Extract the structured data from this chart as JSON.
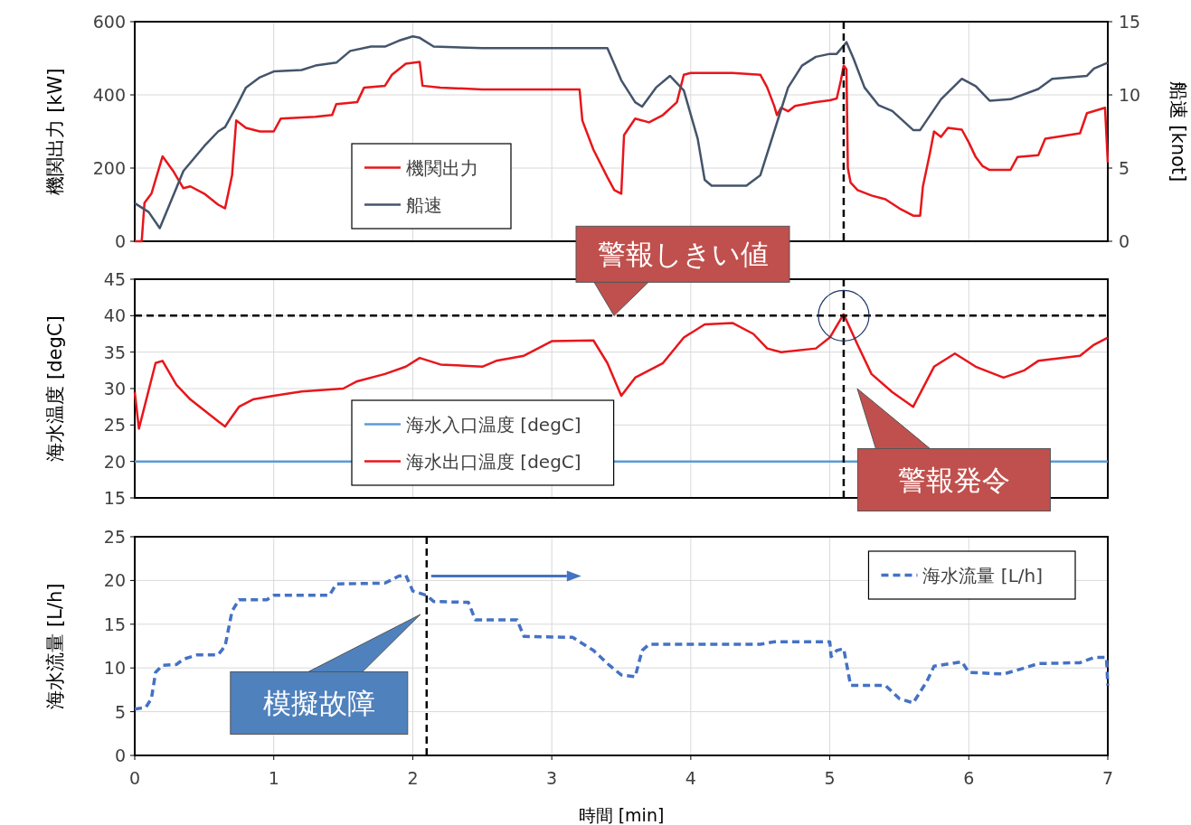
{
  "chart_data": [
    {
      "type": "line",
      "ylabel": "機関出力 [kW]",
      "y2label": "船速 [knot]",
      "xlim": [
        0,
        7
      ],
      "xticks": [
        0,
        1,
        2,
        3,
        4,
        5,
        6,
        7
      ],
      "ylim": [
        0,
        600
      ],
      "yticks": [
        0,
        200,
        400,
        600
      ],
      "y2lim": [
        0,
        15
      ],
      "y2ticks": [
        0,
        5,
        10,
        15
      ],
      "grid": true,
      "legend": "bottom left",
      "tick_labels": "y",
      "ref_lines": [
        {
          "axis": "x",
          "value": 5.1,
          "color": "#000000",
          "line_style": "dashed"
        }
      ],
      "series": [
        {
          "name": "機関出力",
          "color": "#e8161b",
          "x": [
            0,
            0.05,
            0.07,
            0.12,
            0.2,
            0.28,
            0.35,
            0.4,
            0.5,
            0.6,
            0.65,
            0.7,
            0.73,
            0.8,
            0.9,
            1.0,
            1.05,
            1.3,
            1.42,
            1.45,
            1.6,
            1.65,
            1.8,
            1.85,
            1.95,
            2.05,
            2.07,
            2.2,
            2.5,
            3.0,
            3.2,
            3.22,
            3.3,
            3.4,
            3.45,
            3.5,
            3.52,
            3.6,
            3.7,
            3.8,
            3.9,
            3.95,
            4.0,
            4.3,
            4.5,
            4.55,
            4.6,
            4.62,
            4.65,
            4.7,
            4.75,
            4.9,
            5.0,
            5.05,
            5.08,
            5.1,
            5.12,
            5.13,
            5.15,
            5.2,
            5.3,
            5.4,
            5.5,
            5.6,
            5.65,
            5.67,
            5.72,
            5.75,
            5.8,
            5.85,
            5.95,
            6.0,
            6.05,
            6.1,
            6.15,
            6.3,
            6.35,
            6.5,
            6.55,
            6.8,
            6.85,
            6.98,
            7.0
          ],
          "values": [
            0,
            0,
            105,
            130,
            232,
            190,
            145,
            150,
            130,
            100,
            90,
            180,
            330,
            310,
            300,
            300,
            335,
            340,
            345,
            375,
            380,
            420,
            425,
            455,
            485,
            490,
            425,
            420,
            415,
            415,
            415,
            330,
            250,
            175,
            140,
            130,
            290,
            335,
            325,
            345,
            380,
            455,
            460,
            460,
            455,
            420,
            370,
            345,
            365,
            355,
            370,
            380,
            385,
            390,
            440,
            480,
            470,
            200,
            160,
            140,
            125,
            115,
            90,
            70,
            70,
            150,
            240,
            300,
            285,
            310,
            305,
            270,
            230,
            205,
            195,
            195,
            230,
            235,
            280,
            295,
            350,
            365,
            215
          ]
        },
        {
          "name": "船速",
          "color": "#44546a",
          "axis": "y2",
          "x": [
            0,
            0.1,
            0.18,
            0.25,
            0.35,
            0.5,
            0.6,
            0.65,
            0.72,
            0.8,
            0.9,
            1.0,
            1.2,
            1.3,
            1.45,
            1.55,
            1.7,
            1.8,
            1.9,
            2.0,
            2.05,
            2.15,
            2.5,
            3.0,
            3.4,
            3.5,
            3.6,
            3.65,
            3.75,
            3.85,
            3.95,
            4.05,
            4.1,
            4.15,
            4.4,
            4.5,
            4.6,
            4.7,
            4.8,
            4.9,
            5.0,
            5.05,
            5.12,
            5.17,
            5.25,
            5.35,
            5.45,
            5.6,
            5.65,
            5.8,
            5.95,
            6.05,
            6.15,
            6.3,
            6.5,
            6.6,
            6.85,
            6.9,
            7.0
          ],
          "values": [
            2.6,
            2.0,
            0.9,
            2.5,
            4.8,
            6.5,
            7.5,
            7.8,
            9.0,
            10.5,
            11.2,
            11.6,
            11.7,
            12.0,
            12.2,
            13.0,
            13.3,
            13.3,
            13.7,
            14.0,
            13.9,
            13.3,
            13.2,
            13.2,
            13.2,
            11.0,
            9.5,
            9.2,
            10.5,
            11.3,
            10.3,
            7.0,
            4.2,
            3.8,
            3.8,
            4.5,
            7.5,
            10.5,
            12.0,
            12.6,
            12.8,
            12.8,
            13.6,
            12.5,
            10.5,
            9.3,
            8.9,
            7.6,
            7.6,
            9.7,
            11.1,
            10.6,
            9.6,
            9.7,
            10.4,
            11.1,
            11.3,
            11.8,
            12.2
          ]
        }
      ]
    },
    {
      "type": "line",
      "ylabel": "海水温度 [degC]",
      "xlim": [
        0,
        7
      ],
      "xticks": [
        0,
        1,
        2,
        3,
        4,
        5,
        6,
        7
      ],
      "ylim": [
        15,
        45
      ],
      "yticks": [
        15,
        20,
        25,
        30,
        35,
        40,
        45
      ],
      "grid": true,
      "legend": "bottom left",
      "tick_labels": "y",
      "ref_lines": [
        {
          "axis": "x",
          "value": 5.1,
          "color": "#000000",
          "line_style": "dashed",
          "label": "警報発令"
        },
        {
          "axis": "y",
          "value": 40,
          "color": "#000000",
          "line_style": "dashed",
          "label": "警報しきい値"
        }
      ],
      "series": [
        {
          "name": "海水入口温度 [degC]",
          "color": "#5b9bd5",
          "x": [
            0,
            7
          ],
          "values": [
            20,
            20
          ]
        },
        {
          "name": "海水出口温度 [degC]",
          "color": "#e8161b",
          "x": [
            0,
            0.03,
            0.15,
            0.2,
            0.3,
            0.4,
            0.6,
            0.65,
            0.75,
            0.85,
            1.0,
            1.2,
            1.5,
            1.6,
            1.8,
            1.95,
            2.05,
            2.2,
            2.5,
            2.6,
            2.8,
            2.9,
            3.0,
            3.3,
            3.4,
            3.5,
            3.6,
            3.8,
            3.95,
            4.1,
            4.3,
            4.45,
            4.55,
            4.65,
            4.9,
            5.0,
            5.1,
            5.2,
            5.3,
            5.45,
            5.6,
            5.75,
            5.9,
            6.05,
            6.25,
            6.4,
            6.5,
            6.8,
            6.9,
            7.0
          ],
          "values": [
            29.5,
            24.5,
            33.5,
            33.8,
            30.5,
            28.5,
            25.5,
            24.8,
            27.5,
            28.5,
            29.0,
            29.6,
            30.0,
            31.0,
            32.0,
            33.0,
            34.2,
            33.3,
            33.0,
            33.8,
            34.5,
            35.5,
            36.5,
            36.6,
            33.5,
            29.0,
            31.5,
            33.5,
            37.0,
            38.8,
            39.0,
            37.5,
            35.5,
            35.0,
            35.5,
            37.0,
            40.2,
            36.0,
            32.0,
            29.5,
            27.5,
            33.0,
            34.8,
            33.0,
            31.5,
            32.5,
            33.8,
            34.5,
            36.0,
            37.0
          ]
        }
      ]
    },
    {
      "type": "line",
      "ylabel": "海水流量 [L/h]",
      "xlabel": "時間 [min]",
      "xlim": [
        0,
        7
      ],
      "xticks": [
        0,
        1,
        2,
        3,
        4,
        5,
        6,
        7
      ],
      "ylim": [
        0,
        25
      ],
      "yticks": [
        0,
        5,
        10,
        15,
        20,
        25
      ],
      "grid": true,
      "legend": "top right",
      "ref_lines": [
        {
          "axis": "x",
          "value": 2.1,
          "color": "#000000",
          "line_style": "dashed",
          "label": "模擬故障"
        }
      ],
      "series": [
        {
          "name": "海水流量 [L/h]",
          "color": "#4472c4",
          "line_style": "dashed",
          "x": [
            0,
            0.08,
            0.12,
            0.15,
            0.2,
            0.3,
            0.35,
            0.45,
            0.6,
            0.65,
            0.7,
            0.75,
            0.95,
            1.0,
            1.4,
            1.45,
            1.8,
            1.9,
            1.95,
            2.0,
            2.1,
            2.15,
            2.4,
            2.45,
            2.75,
            2.8,
            3.15,
            3.3,
            3.4,
            3.5,
            3.6,
            3.65,
            3.7,
            4.5,
            4.6,
            5.0,
            5.01,
            5.05,
            5.1,
            5.15,
            5.4,
            5.5,
            5.6,
            5.7,
            5.75,
            5.95,
            6.0,
            6.25,
            6.4,
            6.5,
            6.8,
            6.9,
            6.99,
            7.0
          ],
          "values": [
            5.3,
            5.5,
            6.5,
            9.5,
            10.3,
            10.4,
            11.0,
            11.5,
            11.5,
            12.5,
            16.5,
            17.8,
            17.8,
            18.3,
            18.3,
            19.6,
            19.7,
            20.5,
            20.6,
            18.8,
            18.3,
            17.6,
            17.5,
            15.5,
            15.5,
            13.6,
            13.5,
            12.0,
            10.5,
            9.2,
            9.0,
            12.0,
            12.7,
            12.7,
            13.0,
            13.0,
            11.3,
            12.0,
            12.2,
            8.0,
            8.0,
            6.5,
            6.0,
            8.5,
            10.2,
            10.7,
            9.5,
            9.3,
            10.0,
            10.5,
            10.6,
            11.2,
            11.2,
            8.0
          ]
        }
      ]
    }
  ]
}
